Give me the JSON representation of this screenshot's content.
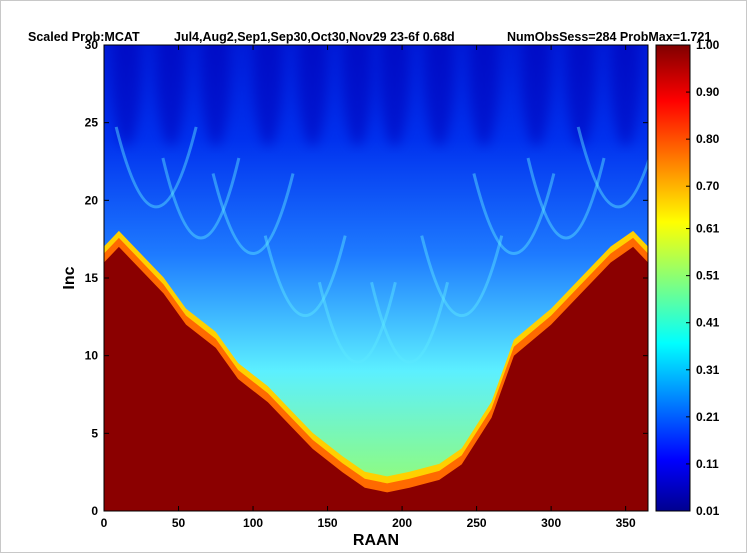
{
  "chart_data": {
    "type": "heatmap",
    "title_parts": [
      "Scaled Prob:MCAT",
      "Jul4,Aug2,Sep1,Sep30,Oct30,Nov29 23-6f 0.68d",
      "NumObsSess=284 ProbMax=1.721"
    ],
    "xlabel": "RAAN",
    "ylabel": "Inc",
    "xlim": [
      0,
      365
    ],
    "ylim": [
      0,
      30
    ],
    "x_ticks": [
      0,
      50,
      100,
      150,
      200,
      250,
      300,
      350
    ],
    "y_ticks": [
      0,
      5,
      10,
      15,
      20,
      25,
      30
    ],
    "colorbar": {
      "colormap": "jet",
      "range": [
        0.01,
        1.0
      ],
      "tick_labels": [
        "1.00",
        "0.90",
        "0.80",
        "0.70",
        "0.61",
        "0.51",
        "0.41",
        "0.31",
        "0.21",
        "0.11",
        "0.01"
      ],
      "tick_values": [
        1.0,
        0.9,
        0.8,
        0.7,
        0.61,
        0.51,
        0.41,
        0.31,
        0.21,
        0.11,
        0.01
      ]
    },
    "saturated_region_boundary": {
      "description_points_raan": [
        0,
        10,
        25,
        40,
        55,
        75,
        90,
        110,
        125,
        140,
        160,
        175,
        190,
        205,
        225,
        240,
        260,
        275,
        300,
        320,
        340,
        355,
        365
      ],
      "description_points_inc": [
        16,
        17,
        15.5,
        14,
        12,
        10.5,
        8.5,
        7,
        5.5,
        4,
        2.5,
        1.5,
        1.2,
        1.5,
        2,
        3,
        6,
        10,
        12,
        14,
        16,
        17,
        16
      ]
    },
    "colors": {
      "saturated": "#8b0000",
      "low": "#00008f",
      "mid": "#7fff7f"
    }
  }
}
